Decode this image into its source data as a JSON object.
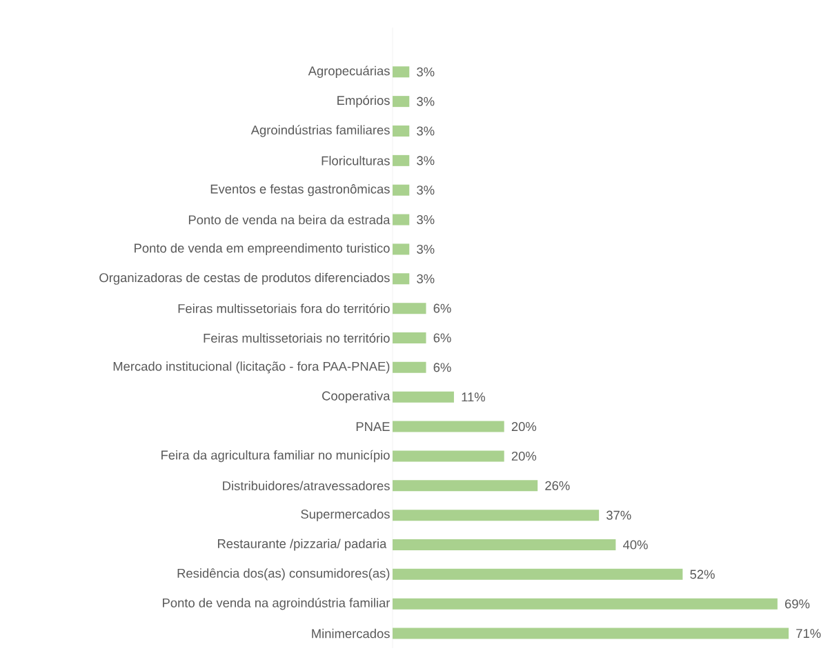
{
  "chart_data": {
    "type": "bar",
    "orientation": "horizontal",
    "color": "#a9d18e",
    "tick_labels": "y",
    "categories": [
      "Agropecuárias",
      "Empórios",
      "Agroindústrias familiares",
      "Floriculturas",
      "Eventos e festas gastronômicas",
      "Ponto de venda na beira da estrada",
      "Ponto de venda em empreendimento turistico",
      "Organizadoras de cestas de produtos diferenciados",
      "Feiras multissetoriais fora do território",
      "Feiras multissetoriais no território",
      "Mercado institucional (licitação - fora PAA-PNAE)",
      "Cooperativa",
      "PNAE",
      "Feira da agricultura familiar no município",
      "Distribuidores/atravessadores",
      "Supermercados",
      "Restaurante /pizzaria/ padaria ",
      "Residência  dos(as) consumidores(as)",
      "Ponto de venda na agroindústria familiar",
      "Minimercados"
    ],
    "values": [
      3,
      3,
      3,
      3,
      3,
      3,
      3,
      3,
      6,
      6,
      6,
      11,
      20,
      20,
      26,
      37,
      40,
      52,
      69,
      71
    ],
    "value_labels": [
      "3%",
      "3%",
      "3%",
      "3%",
      "3%",
      "3%",
      "3%",
      "3%",
      "6%",
      "6%",
      "6%",
      "11%",
      "20%",
      "20%",
      "26%",
      "37%",
      "40%",
      "52%",
      "69%",
      "71%"
    ]
  }
}
